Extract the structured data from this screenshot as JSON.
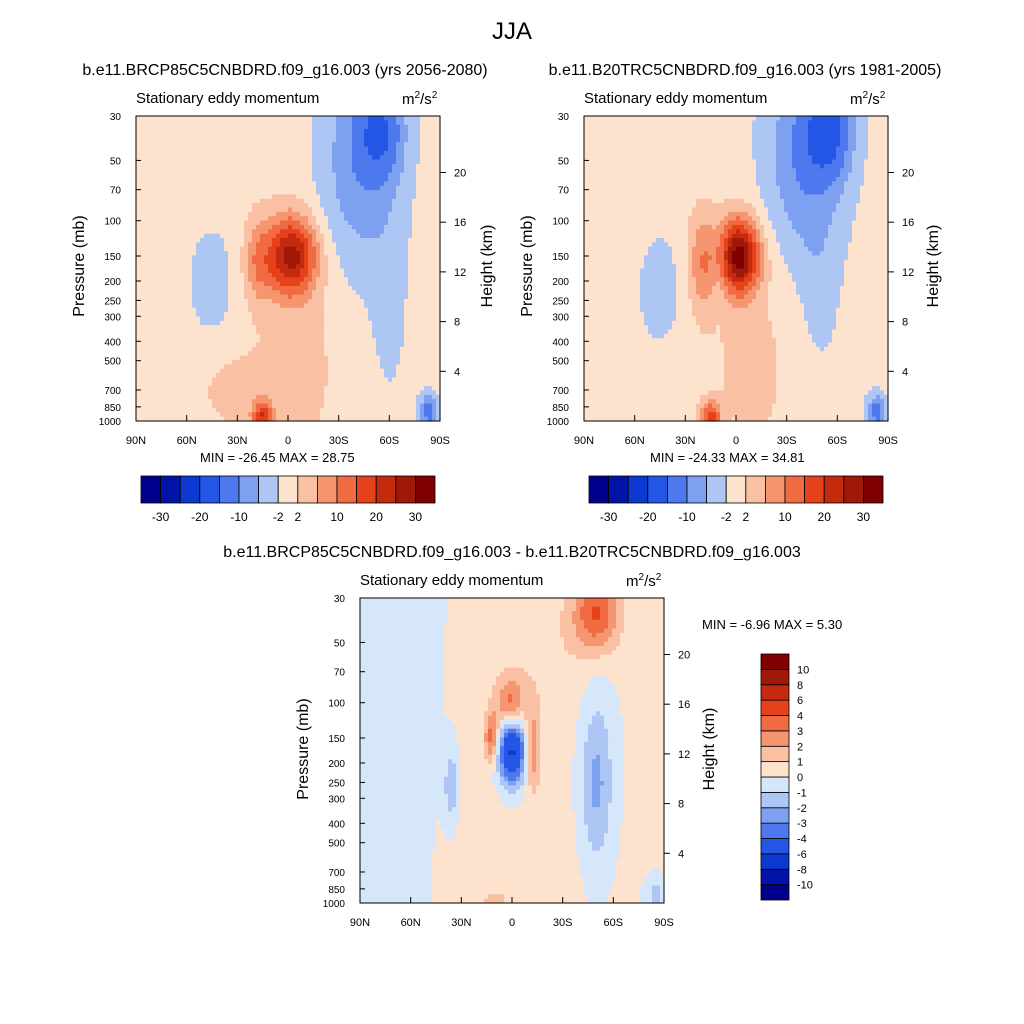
{
  "figure_title": "JJA",
  "panels": [
    {
      "title": "b.e11.BRCP85C5CNBDRD.f09_g16.003 (yrs 2056-2080)",
      "field_label": "Stationary eddy momentum",
      "units_base": "m",
      "units_exp": "2",
      "units_mid": "/s",
      "units_exp2": "2",
      "minmax": "MIN = -26.45  MAX =  28.75",
      "ylabel": "Pressure (mb)",
      "ylabel_right": "Height (km)"
    },
    {
      "title": "b.e11.B20TRC5CNBDRD.f09_g16.003 (yrs 1981-2005)",
      "field_label": "Stationary eddy momentum",
      "units_base": "m",
      "units_exp": "2",
      "units_mid": "/s",
      "units_exp2": "2",
      "minmax": "MIN = -24.33  MAX =  34.81",
      "ylabel": "Pressure (mb)",
      "ylabel_right": "Height (km)"
    },
    {
      "title": "b.e11.BRCP85C5CNBDRD.f09_g16.003 - b.e11.B20TRC5CNBDRD.f09_g16.003",
      "field_label": "Stationary eddy momentum",
      "units_base": "m",
      "units_exp": "2",
      "units_mid": "/s",
      "units_exp2": "2",
      "minmax": "MIN =  -6.96  MAX =   5.30",
      "ylabel": "Pressure (mb)",
      "ylabel_right": "Height (km)"
    }
  ],
  "chart_data": [
    {
      "type": "heatmap",
      "name": "future",
      "x_ticks": [
        "90N",
        "60N",
        "30N",
        "0",
        "30S",
        "60S",
        "90S"
      ],
      "x_tick_lat": [
        90,
        60,
        30,
        0,
        -30,
        -60,
        -90
      ],
      "y_ticks": [
        "30",
        "50",
        "70",
        "100",
        "150",
        "200",
        "250",
        "300",
        "400",
        "500",
        "700",
        "850",
        "1000"
      ],
      "y_tick_p": [
        30,
        50,
        70,
        100,
        150,
        200,
        250,
        300,
        400,
        500,
        700,
        850,
        1000
      ],
      "right_ticks": [
        "4",
        "8",
        "12",
        "16",
        "20"
      ],
      "right_tick_km": [
        4,
        8,
        12,
        16,
        20
      ],
      "ylim": [
        1000,
        30
      ],
      "xlim": [
        90,
        -90
      ],
      "levels": [
        -30,
        -25,
        -20,
        -15,
        -10,
        -6,
        -2,
        2,
        6,
        10,
        15,
        20,
        25,
        30
      ],
      "colorbar_labels": [
        "-30",
        "-20",
        "-10",
        "-2",
        "2",
        "10",
        "20",
        "30"
      ],
      "colorbar_label_levels": [
        -30,
        -20,
        -10,
        -2,
        2,
        10,
        20,
        30
      ],
      "min": -26.45,
      "max": 28.75,
      "features": [
        {
          "lat": 45,
          "p": 200,
          "amp": -3.5,
          "slat": 12,
          "sz": 0.55
        },
        {
          "lat": 18,
          "p": 160,
          "amp": 8,
          "slat": 6,
          "sz": 0.35
        },
        {
          "lat": -2,
          "p": 150,
          "amp": 26,
          "slat": 10,
          "sz": 0.3
        },
        {
          "lat": -42,
          "p": 55,
          "amp": -9,
          "slat": 18,
          "sz": 0.9
        },
        {
          "lat": -55,
          "p": 35,
          "amp": -11,
          "slat": 10,
          "sz": 0.4
        },
        {
          "lat": -60,
          "p": 300,
          "amp": -3,
          "slat": 8,
          "sz": 0.8
        },
        {
          "lat": 15,
          "p": 950,
          "amp": 18,
          "slat": 4,
          "sz": 0.12
        },
        {
          "lat": 30,
          "p": 700,
          "amp": 4,
          "slat": 15,
          "sz": 0.3
        },
        {
          "lat": -83,
          "p": 900,
          "amp": -12,
          "slat": 4,
          "sz": 0.15
        },
        {
          "lat": -8,
          "p": 400,
          "amp": 3,
          "slat": 20,
          "sz": 1.2
        }
      ]
    },
    {
      "type": "heatmap",
      "name": "historical",
      "x_ticks": [
        "90N",
        "60N",
        "30N",
        "0",
        "30S",
        "60S",
        "90S"
      ],
      "x_tick_lat": [
        90,
        60,
        30,
        0,
        -30,
        -60,
        -90
      ],
      "y_ticks": [
        "30",
        "50",
        "70",
        "100",
        "150",
        "200",
        "250",
        "300",
        "400",
        "500",
        "700",
        "850",
        "1000"
      ],
      "y_tick_p": [
        30,
        50,
        70,
        100,
        150,
        200,
        250,
        300,
        400,
        500,
        700,
        850,
        1000
      ],
      "right_ticks": [
        "4",
        "8",
        "12",
        "16",
        "20"
      ],
      "right_tick_km": [
        4,
        8,
        12,
        16,
        20
      ],
      "ylim": [
        1000,
        30
      ],
      "xlim": [
        90,
        -90
      ],
      "levels": [
        -30,
        -25,
        -20,
        -15,
        -10,
        -6,
        -2,
        2,
        6,
        10,
        15,
        20,
        25,
        30
      ],
      "colorbar_labels": [
        "-30",
        "-20",
        "-10",
        "-2",
        "2",
        "10",
        "20",
        "30"
      ],
      "colorbar_label_levels": [
        -30,
        -20,
        -10,
        -2,
        2,
        10,
        20,
        30
      ],
      "min": -24.33,
      "max": 34.81,
      "features": [
        {
          "lat": 45,
          "p": 220,
          "amp": -4,
          "slat": 10,
          "sz": 0.5
        },
        {
          "lat": 20,
          "p": 160,
          "amp": 9,
          "slat": 6,
          "sz": 0.4
        },
        {
          "lat": -2,
          "p": 150,
          "amp": 32,
          "slat": 8,
          "sz": 0.28
        },
        {
          "lat": -40,
          "p": 50,
          "amp": -10,
          "slat": 18,
          "sz": 0.9
        },
        {
          "lat": -55,
          "p": 35,
          "amp": -13,
          "slat": 10,
          "sz": 0.4
        },
        {
          "lat": -50,
          "p": 250,
          "amp": -3,
          "slat": 8,
          "sz": 0.6
        },
        {
          "lat": 15,
          "p": 950,
          "amp": 16,
          "slat": 4,
          "sz": 0.12
        },
        {
          "lat": 10,
          "p": 180,
          "amp": -3,
          "slat": 3,
          "sz": 0.3
        },
        {
          "lat": -83,
          "p": 900,
          "amp": -12,
          "slat": 4,
          "sz": 0.15
        },
        {
          "lat": -10,
          "p": 400,
          "amp": 3,
          "slat": 20,
          "sz": 1.2
        }
      ]
    },
    {
      "type": "heatmap",
      "name": "difference",
      "x_ticks": [
        "90N",
        "60N",
        "30N",
        "0",
        "30S",
        "60S",
        "90S"
      ],
      "x_tick_lat": [
        90,
        60,
        30,
        0,
        -30,
        -60,
        -90
      ],
      "y_ticks": [
        "30",
        "50",
        "70",
        "100",
        "150",
        "200",
        "250",
        "300",
        "400",
        "500",
        "700",
        "850",
        "1000"
      ],
      "y_tick_p": [
        30,
        50,
        70,
        100,
        150,
        200,
        250,
        300,
        400,
        500,
        700,
        850,
        1000
      ],
      "right_ticks": [
        "4",
        "8",
        "12",
        "16",
        "20"
      ],
      "right_tick_km": [
        4,
        8,
        12,
        16,
        20
      ],
      "ylim": [
        1000,
        30
      ],
      "xlim": [
        90,
        -90
      ],
      "levels": [
        -10,
        -8,
        -6,
        -4,
        -3,
        -2,
        -1,
        0,
        1,
        2,
        3,
        4,
        6,
        8,
        10
      ],
      "colorbar_labels": [
        "10",
        "8",
        "6",
        "4",
        "3",
        "2",
        "1",
        "0",
        "-1",
        "-2",
        "-3",
        "-4",
        "-6",
        "-8",
        "-10"
      ],
      "colorbar_label_levels": [
        10,
        8,
        6,
        4,
        3,
        2,
        1,
        0,
        -1,
        -2,
        -3,
        -4,
        -6,
        -8,
        -10
      ],
      "min": -6.96,
      "max": 5.3,
      "features": [
        {
          "lat": 0,
          "p": 170,
          "amp": -7,
          "slat": 6,
          "sz": 0.3
        },
        {
          "lat": 1,
          "p": 105,
          "amp": 4,
          "slat": 6,
          "sz": 0.22
        },
        {
          "lat": 12,
          "p": 150,
          "amp": 3.5,
          "slat": 3,
          "sz": 0.2
        },
        {
          "lat": -12,
          "p": 170,
          "amp": 3,
          "slat": 3,
          "sz": 0.3
        },
        {
          "lat": -50,
          "p": 36,
          "amp": 4,
          "slat": 10,
          "sz": 0.3
        },
        {
          "lat": 36,
          "p": 260,
          "amp": -2,
          "slat": 3,
          "sz": 0.3
        },
        {
          "lat": -50,
          "p": 250,
          "amp": -2.5,
          "slat": 7,
          "sz": 0.7
        },
        {
          "lat": 10,
          "p": 1000,
          "amp": 1.5,
          "slat": 4,
          "sz": 0.08
        },
        {
          "lat": -85,
          "p": 900,
          "amp": -1.5,
          "slat": 4,
          "sz": 0.12
        },
        {
          "lat": 10,
          "p": 600,
          "amp": 0.6,
          "slat": 50,
          "sz": 1.5
        },
        {
          "lat": -20,
          "p": 60,
          "amp": 0.7,
          "slat": 20,
          "sz": 0.6
        },
        {
          "lat": 60,
          "p": 400,
          "amp": -0.6,
          "slat": 20,
          "sz": 1.5
        }
      ]
    }
  ],
  "colors": {
    "seq_blue_red": [
      "#00008c",
      "#0014a8",
      "#0c3ad0",
      "#2456e6",
      "#4d78ee",
      "#7da0f0",
      "#adc6f4",
      "#d6e6fb",
      "#fde2ce",
      "#f9c0a3",
      "#f59671",
      "#f06a42",
      "#e5411a",
      "#c42a0e",
      "#a01808",
      "#7f0000"
    ]
  }
}
